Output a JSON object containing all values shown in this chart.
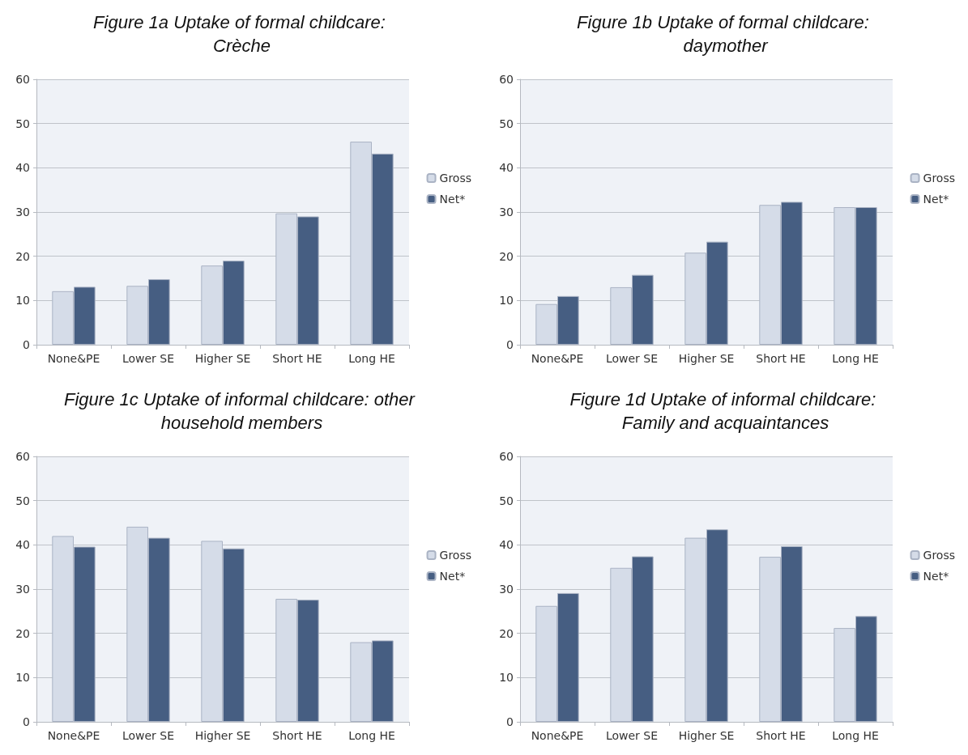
{
  "chart_data": [
    {
      "type": "bar",
      "title": "Figure 1a Uptake of formal childcare: Crèche",
      "categories": [
        "None&PE",
        "Lower SE",
        "Higher SE",
        "Short HE",
        "Long HE"
      ],
      "series": [
        {
          "name": "Gross",
          "color": "#d5dce8",
          "values": [
            12.1,
            13.3,
            17.9,
            29.7,
            45.9
          ]
        },
        {
          "name": "Net*",
          "color": "#465e82",
          "values": [
            13.1,
            14.8,
            19.0,
            29.0,
            43.2
          ]
        }
      ],
      "ylim": [
        0,
        60
      ],
      "yticks": [
        0,
        10,
        20,
        30,
        40,
        50,
        60
      ],
      "grid": "y",
      "legend": "right"
    },
    {
      "type": "bar",
      "title": "Figure 1b Uptake of formal childcare: daymother",
      "categories": [
        "None&PE",
        "Lower SE",
        "Higher SE",
        "Short HE",
        "Long HE"
      ],
      "series": [
        {
          "name": "Gross",
          "color": "#d5dce8",
          "values": [
            9.2,
            13.0,
            20.8,
            31.6,
            31.1
          ]
        },
        {
          "name": "Net*",
          "color": "#465e82",
          "values": [
            11.0,
            15.8,
            23.3,
            32.3,
            31.1
          ]
        }
      ],
      "ylim": [
        0,
        60
      ],
      "yticks": [
        0,
        10,
        20,
        30,
        40,
        50,
        60
      ],
      "grid": "y",
      "legend": "right"
    },
    {
      "type": "bar",
      "title": "Figure 1c Uptake of informal childcare: other household members",
      "categories": [
        "None&PE",
        "Lower SE",
        "Higher SE",
        "Short HE",
        "Long HE"
      ],
      "series": [
        {
          "name": "Gross",
          "color": "#d5dce8",
          "values": [
            42.0,
            44.1,
            40.9,
            27.8,
            18.0
          ]
        },
        {
          "name": "Net*",
          "color": "#465e82",
          "values": [
            39.6,
            41.6,
            39.2,
            27.6,
            18.4
          ]
        }
      ],
      "ylim": [
        0,
        60
      ],
      "yticks": [
        0,
        10,
        20,
        30,
        40,
        50,
        60
      ],
      "grid": "y",
      "legend": "right"
    },
    {
      "type": "bar",
      "title": "Figure 1d Uptake of informal childcare: Family and acquaintances",
      "categories": [
        "None&PE",
        "Lower SE",
        "Higher SE",
        "Short HE",
        "Long HE"
      ],
      "series": [
        {
          "name": "Gross",
          "color": "#d5dce8",
          "values": [
            26.2,
            34.8,
            41.6,
            37.3,
            21.2
          ]
        },
        {
          "name": "Net*",
          "color": "#465e82",
          "values": [
            29.1,
            37.4,
            43.5,
            39.7,
            23.9
          ]
        }
      ],
      "ylim": [
        0,
        60
      ],
      "yticks": [
        0,
        10,
        20,
        30,
        40,
        50,
        60
      ],
      "grid": "y",
      "legend": "right"
    }
  ]
}
